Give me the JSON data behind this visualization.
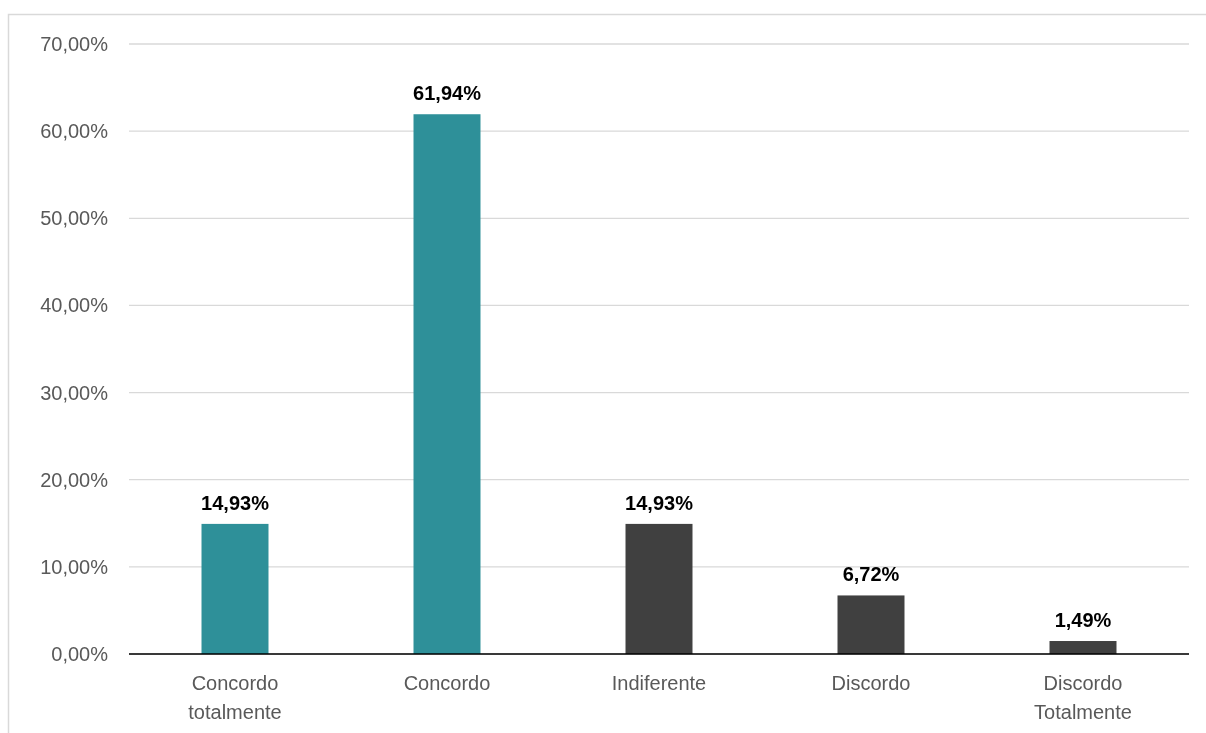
{
  "chart_data": {
    "type": "bar",
    "categories": [
      "Concordo totalmente",
      "Concordo",
      "Indiferente",
      "Discordo",
      "Discordo Totalmente"
    ],
    "values": [
      14.93,
      61.94,
      14.93,
      6.72,
      1.49
    ],
    "colors": [
      "#2e9099",
      "#2e9099",
      "#404040",
      "#404040",
      "#404040"
    ],
    "value_labels": [
      "14,93%",
      "61,94%",
      "14,93%",
      "6,72%",
      "1,49%"
    ],
    "ylim": [
      0,
      70
    ],
    "yticks": [
      {
        "value": 0,
        "label": "0,00%"
      },
      {
        "value": 10,
        "label": "10,00%"
      },
      {
        "value": 20,
        "label": "20,00%"
      },
      {
        "value": 30,
        "label": "30,00%"
      },
      {
        "value": 40,
        "label": "40,00%"
      },
      {
        "value": 50,
        "label": "50,00%"
      },
      {
        "value": 60,
        "label": "60,00%"
      },
      {
        "value": 70,
        "label": "70,00%"
      }
    ],
    "grid": "y"
  }
}
